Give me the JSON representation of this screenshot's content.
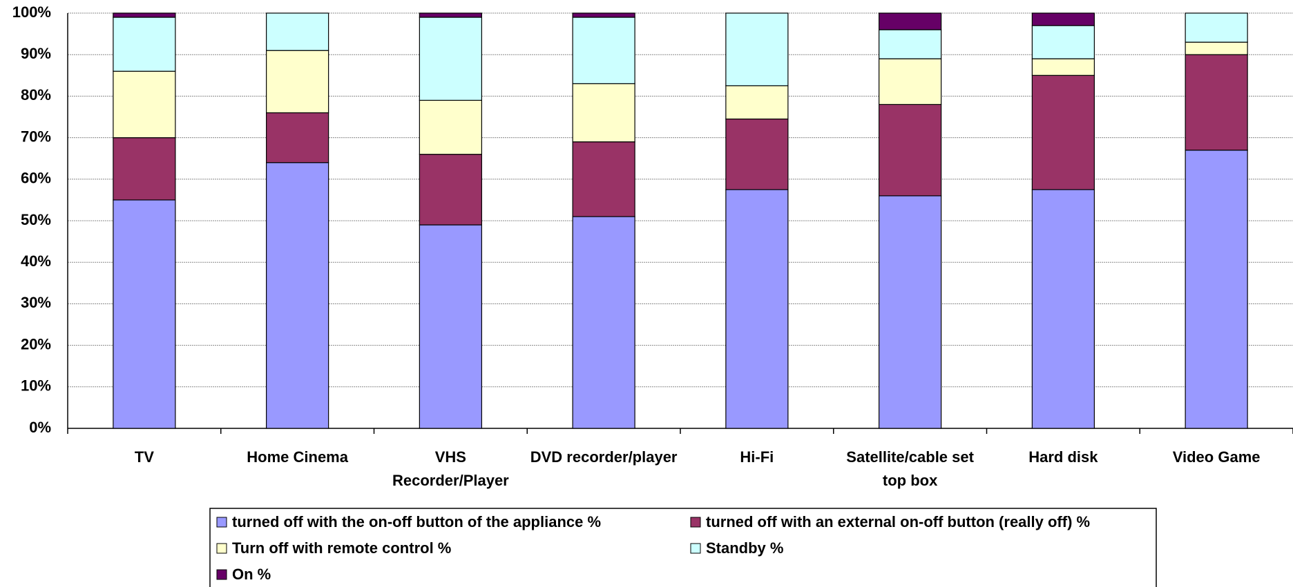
{
  "chart_data": {
    "type": "stacked_bar",
    "categories": [
      "TV",
      "Home Cinema",
      "VHS Recorder/Player",
      "DVD recorder/player",
      "Hi-Fi",
      "Satellite/cable set top box",
      "Hard disk",
      "Video Game"
    ],
    "series": [
      {
        "name": "turned off with the on-off button of the appliance %",
        "color": "#9999ff",
        "values": [
          55,
          64,
          49,
          51,
          57.5,
          56,
          57.5,
          67
        ]
      },
      {
        "name": "turned off with an external on-off button (really off) %",
        "color": "#993366",
        "values": [
          15,
          12,
          17,
          18,
          17,
          22,
          27.5,
          23
        ]
      },
      {
        "name": "Turn off with remote control %",
        "color": "#ffffcc",
        "values": [
          16,
          15,
          13,
          14,
          8,
          11,
          4,
          3
        ]
      },
      {
        "name": "Standby %",
        "color": "#ccffff",
        "values": [
          13,
          9,
          20,
          16,
          17.5,
          7,
          8,
          7
        ]
      },
      {
        "name": "On %",
        "color": "#660066",
        "values": [
          1,
          0,
          1,
          1,
          0,
          4,
          3,
          0
        ]
      }
    ],
    "ylim": [
      0,
      100
    ],
    "yticks": [
      {
        "value": 0,
        "label": "0%"
      },
      {
        "value": 10,
        "label": "10%"
      },
      {
        "value": 20,
        "label": "20%"
      },
      {
        "value": 30,
        "label": "30%"
      },
      {
        "value": 40,
        "label": "40%"
      },
      {
        "value": 50,
        "label": "50%"
      },
      {
        "value": 60,
        "label": "60%"
      },
      {
        "value": 70,
        "label": "70%"
      },
      {
        "value": 80,
        "label": "80%"
      },
      {
        "value": 90,
        "label": "90%"
      },
      {
        "value": 100,
        "label": "100%"
      }
    ],
    "grid": true,
    "legend": "bottom",
    "stacked": true
  }
}
